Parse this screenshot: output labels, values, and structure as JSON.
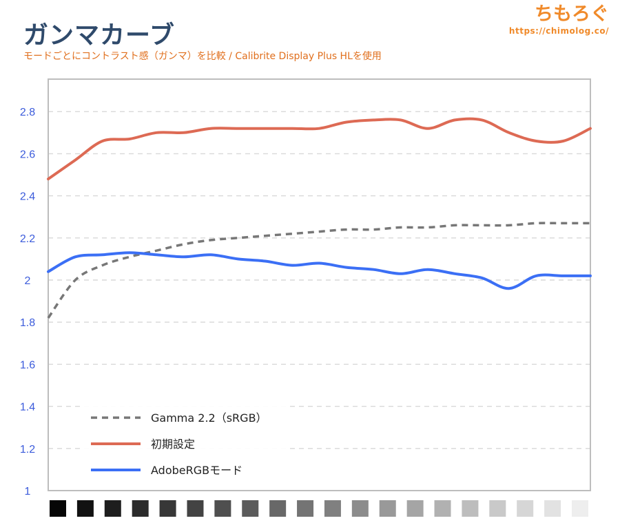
{
  "header": {
    "title": "ガンマカーブ",
    "subtitle": "モードごとにコントラスト感（ガンマ）を比較 / Calibrite Display Plus HLを使用",
    "brand_logo": "ちもろぐ",
    "brand_url": "https://chimolog.co/"
  },
  "colors": {
    "gamma22": "#777777",
    "initial": "#dd6a54",
    "adobergb": "#3b6ff5",
    "axis_tick_text": "#3b5bdb",
    "grid": "#d8d8d8",
    "plot_border": "#bdbdbd"
  },
  "chart_data": {
    "type": "line",
    "title": "ガンマカーブ",
    "xlabel": "",
    "ylabel": "",
    "ylim": [
      1,
      2.9
    ],
    "yticks": [
      1,
      1.2,
      1.4,
      1.6,
      1.8,
      2,
      2.2,
      2.4,
      2.6,
      2.8
    ],
    "ytick_labels": [
      "1",
      "1.2",
      "1.4",
      "1.6",
      "1.8",
      "2",
      "2.2",
      "2.4",
      "2.6",
      "2.8"
    ],
    "grid": true,
    "legend_position": "bottom-left",
    "x": [
      0,
      1,
      2,
      3,
      4,
      5,
      6,
      7,
      8,
      9,
      10,
      11,
      12,
      13,
      14,
      15,
      16,
      17,
      18,
      19,
      20
    ],
    "xlim": [
      0,
      20
    ],
    "series": [
      {
        "name": "Gamma 2.2（sRGB）",
        "style": "dashed",
        "color": "#777777",
        "values": [
          1.82,
          2.0,
          2.07,
          2.11,
          2.14,
          2.17,
          2.19,
          2.2,
          2.21,
          2.22,
          2.23,
          2.24,
          2.24,
          2.25,
          2.25,
          2.26,
          2.26,
          2.26,
          2.27,
          2.27,
          2.27
        ]
      },
      {
        "name": "初期設定",
        "style": "solid",
        "color": "#dd6a54",
        "values": [
          2.48,
          2.57,
          2.66,
          2.67,
          2.7,
          2.7,
          2.72,
          2.72,
          2.72,
          2.72,
          2.72,
          2.75,
          2.76,
          2.76,
          2.72,
          2.76,
          2.76,
          2.7,
          2.66,
          2.66,
          2.72
        ]
      },
      {
        "name": "AdobeRGBモード",
        "style": "solid",
        "color": "#3b6ff5",
        "values": [
          2.04,
          2.11,
          2.12,
          2.13,
          2.12,
          2.11,
          2.12,
          2.1,
          2.09,
          2.07,
          2.08,
          2.06,
          2.05,
          2.03,
          2.05,
          2.03,
          2.01,
          1.96,
          2.02,
          2.02,
          2.02
        ]
      }
    ],
    "grayscale_steps": 20
  }
}
